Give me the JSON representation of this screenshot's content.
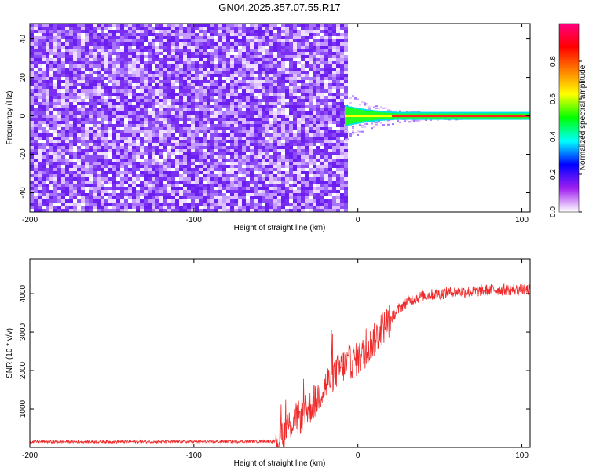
{
  "title": "GN04.2025.357.07.55.R17",
  "chart_data": [
    {
      "type": "heatmap",
      "xlabel": "Height of straight line (km)",
      "ylabel": "Frequency (Hz)",
      "xlim": [
        -200,
        105
      ],
      "ylim": [
        -50,
        48
      ],
      "x_ticks": [
        -200,
        -100,
        0,
        100
      ],
      "y_ticks": [
        -40,
        -20,
        0,
        20,
        40
      ],
      "noise_region_x": [
        -200,
        -8
      ],
      "signal_region_x": [
        -8,
        105
      ],
      "signal_frequency_hz": 0,
      "colorbar": {
        "label": "Normalized spectral amplitude",
        "range": [
          0,
          1
        ],
        "ticks": [
          0.0,
          0.2,
          0.4,
          0.6,
          0.8
        ],
        "tick_labels": [
          "0.0",
          "0.2",
          "0.4",
          "0.6",
          "0.8"
        ],
        "colors": [
          "#ffffff",
          "#a020f0",
          "#0000ff",
          "#00ffff",
          "#00ff00",
          "#ffff00",
          "#ff8000",
          "#ff0000",
          "#ff0080"
        ]
      }
    },
    {
      "type": "line",
      "xlabel": "Height of straight line (km)",
      "ylabel": "SNR (10 * v/v)",
      "xlim": [
        -200,
        105
      ],
      "ylim": [
        0,
        4900
      ],
      "x_ticks": [
        -200,
        -100,
        0,
        100
      ],
      "y_ticks": [
        1000,
        2000,
        3000,
        4000
      ],
      "color": "#ee2a2a",
      "profile": {
        "x": [
          -200,
          -100,
          -50,
          -45,
          -40,
          -35,
          -30,
          -25,
          -20,
          -15,
          -10,
          -5,
          0,
          5,
          10,
          15,
          20,
          25,
          30,
          40,
          50,
          60,
          70,
          80,
          90,
          100,
          105
        ],
        "y": [
          150,
          150,
          160,
          450,
          650,
          800,
          1000,
          1250,
          1600,
          1900,
          2100,
          2200,
          2300,
          2500,
          2800,
          3100,
          3350,
          3600,
          3800,
          3950,
          4000,
          4050,
          4050,
          4100,
          4100,
          4100,
          4100
        ]
      }
    }
  ]
}
